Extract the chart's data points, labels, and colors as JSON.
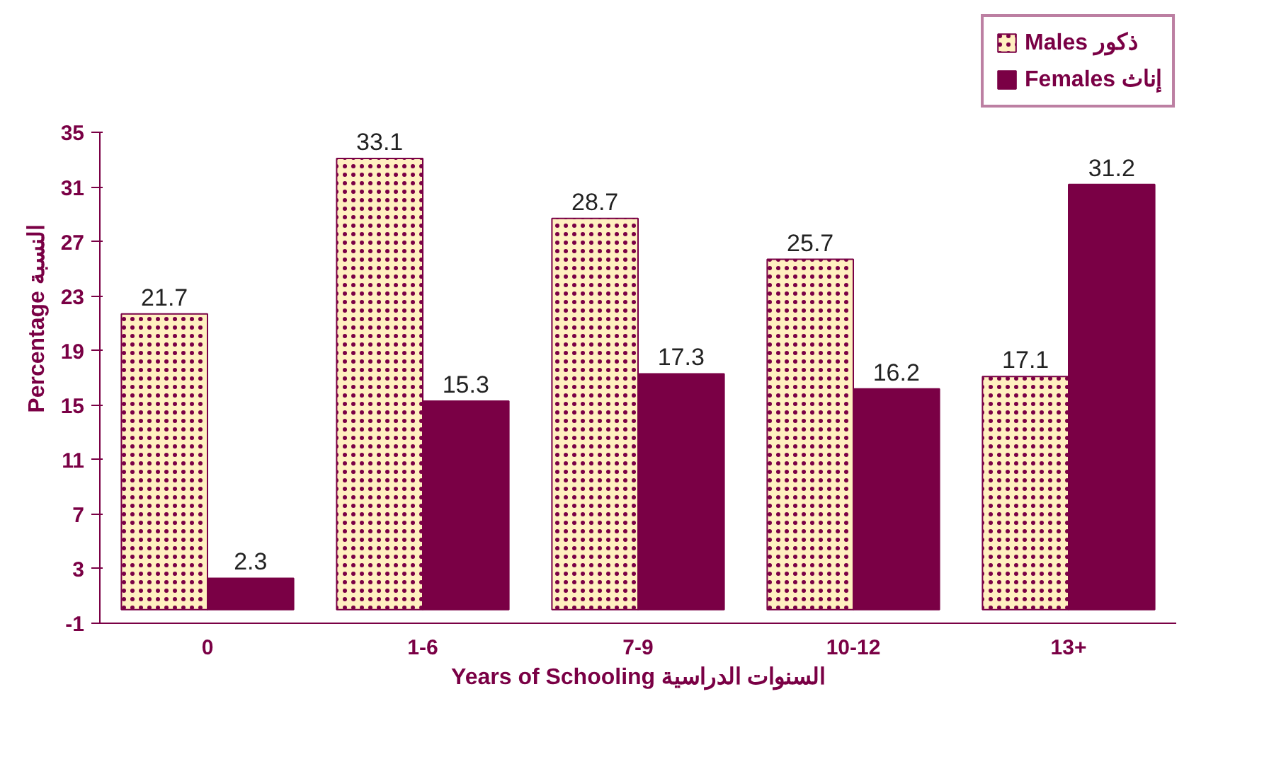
{
  "chart_data": {
    "type": "bar",
    "xlabel": "Years of Schooling السنوات الدراسية",
    "ylabel": "Percentage النسبة",
    "categories": [
      "0",
      "1-6",
      "7-9",
      "10-12",
      "13+"
    ],
    "series": [
      {
        "name": "Males ذكور",
        "color": "#fff0c0",
        "values": [
          21.7,
          33.1,
          28.7,
          25.7,
          17.1
        ]
      },
      {
        "name": "Females إناث",
        "color": "#7a0045",
        "values": [
          2.3,
          15.3,
          17.3,
          16.2,
          31.2
        ]
      }
    ],
    "ylim": [
      -1,
      35
    ],
    "yticks": [
      -1,
      3,
      7,
      11,
      15,
      19,
      23,
      27,
      31,
      35
    ],
    "data_labels": true,
    "grid": false,
    "legend": "top right"
  }
}
